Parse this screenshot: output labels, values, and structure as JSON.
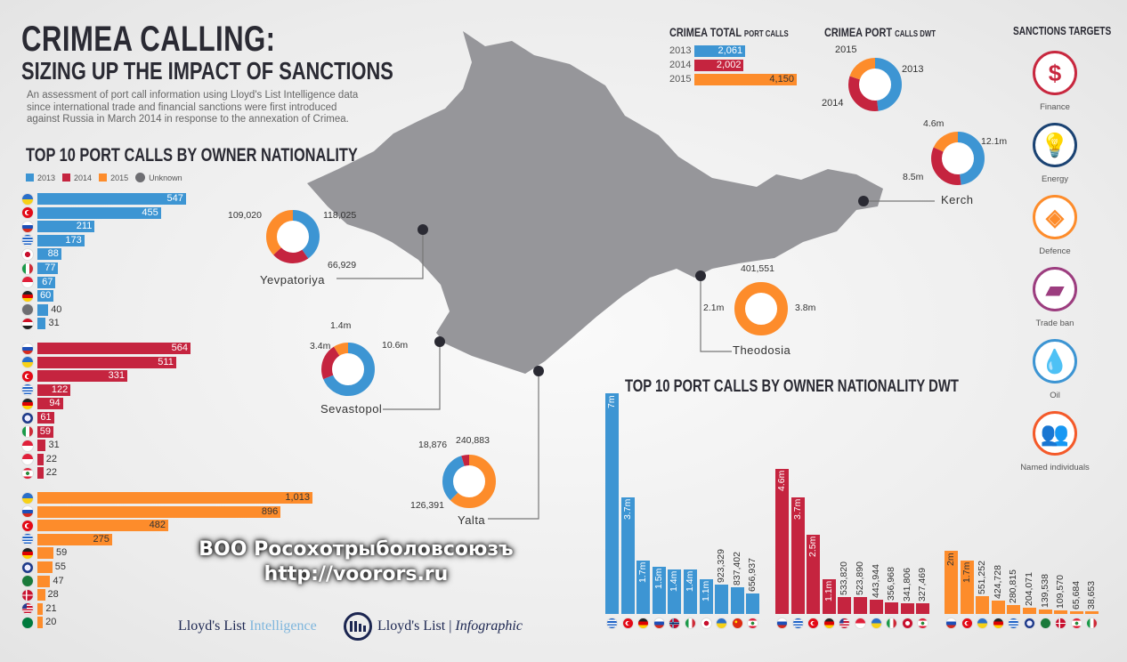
{
  "header": {
    "title": "CRIMEA CALLING:",
    "subtitle": "SIZING UP THE IMPACT OF SANCTIONS",
    "intro": [
      "An assessment of port call information using Lloyd's List Intelligence data",
      "since international trade and financial sanctions were first introduced",
      "against Russia in March 2014 in response to the annexation of Crimea."
    ]
  },
  "colors": {
    "2013": "#3d95d3",
    "2014": "#c5243f",
    "2015": "#fd8c2b",
    "unknown": "#6e6e72"
  },
  "chart_data": [
    {
      "type": "bar",
      "title": "TOP 10 PORT CALLS BY OWNER NATIONALITY",
      "legend": [
        {
          "label": "2013",
          "key": "2013"
        },
        {
          "label": "2014",
          "key": "2014"
        },
        {
          "label": "2015",
          "key": "2015"
        },
        {
          "label": "Unknown",
          "key": "unknown"
        }
      ],
      "groups": [
        {
          "year": "2013",
          "rows": [
            {
              "flag": "ua",
              "value": 547,
              "label": "547"
            },
            {
              "flag": "tr",
              "value": 455,
              "label": "455"
            },
            {
              "flag": "ru",
              "value": 211,
              "label": "211"
            },
            {
              "flag": "gr",
              "value": 173,
              "label": "173"
            },
            {
              "flag": "jp",
              "value": 88,
              "label": "88"
            },
            {
              "flag": "it",
              "value": 77,
              "label": "77"
            },
            {
              "flag": "sg",
              "value": 67,
              "label": "67"
            },
            {
              "flag": "de",
              "value": 60,
              "label": "60"
            },
            {
              "flag": "unknown",
              "value": 40,
              "label": "40"
            },
            {
              "flag": "sy",
              "value": 31,
              "label": "31"
            }
          ]
        },
        {
          "year": "2014",
          "rows": [
            {
              "flag": "ru",
              "value": 564,
              "label": "564"
            },
            {
              "flag": "ua",
              "value": 511,
              "label": "511"
            },
            {
              "flag": "tr",
              "value": 331,
              "label": "331"
            },
            {
              "flag": "gr",
              "value": 122,
              "label": "122"
            },
            {
              "flag": "de",
              "value": 94,
              "label": "94"
            },
            {
              "flag": "bz",
              "value": 61,
              "label": "61"
            },
            {
              "flag": "it",
              "value": 59,
              "label": "59"
            },
            {
              "flag": "id",
              "value": 31,
              "label": "31"
            },
            {
              "flag": "sg",
              "value": 22,
              "label": "22"
            },
            {
              "flag": "lb",
              "value": 22,
              "label": "22"
            }
          ]
        },
        {
          "year": "2015",
          "rows": [
            {
              "flag": "ua",
              "value": 1013,
              "label": "1,013"
            },
            {
              "flag": "ru",
              "value": 896,
              "label": "896"
            },
            {
              "flag": "tr",
              "value": 482,
              "label": "482"
            },
            {
              "flag": "gr",
              "value": 275,
              "label": "275"
            },
            {
              "flag": "de",
              "value": 59,
              "label": "59"
            },
            {
              "flag": "bz",
              "value": 55,
              "label": "55"
            },
            {
              "flag": "sa",
              "value": 47,
              "label": "47"
            },
            {
              "flag": "dk",
              "value": 28,
              "label": "28"
            },
            {
              "flag": "us",
              "value": 21,
              "label": "21"
            },
            {
              "flag": "sc",
              "value": 20,
              "label": "20"
            }
          ]
        }
      ]
    },
    {
      "type": "bar",
      "title_main": "CRIMEA TOTAL",
      "title_sub": "PORT CALLS",
      "rows": [
        {
          "year": "2013",
          "value": 2061,
          "label": "2,061"
        },
        {
          "year": "2014",
          "value": 2002,
          "label": "2,002"
        },
        {
          "year": "2015",
          "value": 4150,
          "label": "4,150"
        }
      ]
    },
    {
      "type": "pie",
      "title_main": "CRIMEA PORT",
      "title_sub": "CALLS DWT",
      "segments": [
        {
          "year": "2013",
          "label": "2013",
          "share": 0.48
        },
        {
          "year": "2014",
          "label": "2014",
          "share": 0.32
        },
        {
          "year": "2015",
          "label": "2015",
          "share": 0.2
        }
      ]
    },
    {
      "type": "pie",
      "ports": [
        {
          "name": "Kerch",
          "segments": [
            {
              "year": "2013",
              "value": 12.1,
              "label": "12.1m"
            },
            {
              "year": "2014",
              "value": 8.5,
              "label": "8.5m"
            },
            {
              "year": "2015",
              "value": 4.6,
              "label": "4.6m"
            }
          ]
        },
        {
          "name": "Yevpatoriya",
          "segments": [
            {
              "year": "2013",
              "value": 118025,
              "label": "118,025"
            },
            {
              "year": "2014",
              "value": 66929,
              "label": "66,929"
            },
            {
              "year": "2015",
              "value": 109020,
              "label": "109,020"
            }
          ]
        },
        {
          "name": "Sevastopol",
          "segments": [
            {
              "year": "2013",
              "value": 10.6,
              "label": "10.6m"
            },
            {
              "year": "2014",
              "value": 3.4,
              "label": "3.4m"
            },
            {
              "year": "2015",
              "value": 1.4,
              "label": "1.4m"
            }
          ]
        },
        {
          "name": "Theodosia",
          "segments": [
            {
              "year": "2013",
              "value": 3.8,
              "label": "3.8m"
            },
            {
              "year": "2014",
              "value": 2.1,
              "label": "2.1m"
            },
            {
              "year": "2015",
              "value": 401551,
              "label": "401,551"
            }
          ]
        },
        {
          "name": "Yalta",
          "segments": [
            {
              "year": "2015",
              "value": 240883,
              "label": "240,883"
            },
            {
              "year": "2013",
              "value": 126391,
              "label": "126,391"
            },
            {
              "year": "2014",
              "value": 18876,
              "label": "18,876"
            }
          ]
        }
      ]
    },
    {
      "type": "bar",
      "title": "TOP 10 PORT CALLS BY OWNER NATIONALITY DWT",
      "unit": "million DWT",
      "groups": [
        {
          "year": "2013",
          "bars": [
            {
              "flag": "gr",
              "value": 7,
              "label": "7m"
            },
            {
              "flag": "tr",
              "value": 3.7,
              "label": "3.7m"
            },
            {
              "flag": "de",
              "value": 1.7,
              "label": "1.7m"
            },
            {
              "flag": "ru",
              "value": 1.5,
              "label": "1.5m"
            },
            {
              "flag": "no",
              "value": 1.4,
              "label": "1.4m"
            },
            {
              "flag": "it",
              "value": 1.4,
              "label": "1.4m"
            },
            {
              "flag": "jp",
              "value": 1.1,
              "label": "1.1m"
            },
            {
              "flag": "ua",
              "value": 0.923329,
              "label": "923,329"
            },
            {
              "flag": "cn",
              "value": 0.837402,
              "label": "837,402"
            },
            {
              "flag": "lb",
              "value": 0.656937,
              "label": "656,937"
            }
          ]
        },
        {
          "year": "2014",
          "bars": [
            {
              "flag": "ru",
              "value": 4.6,
              "label": "4.6m"
            },
            {
              "flag": "gr",
              "value": 3.7,
              "label": "3.7m"
            },
            {
              "flag": "tr",
              "value": 2.5,
              "label": "2.5m"
            },
            {
              "flag": "de",
              "value": 1.1,
              "label": "1.1m"
            },
            {
              "flag": "us",
              "value": 0.53382,
              "label": "533,820"
            },
            {
              "flag": "id",
              "value": 0.52389,
              "label": "523,890"
            },
            {
              "flag": "ua",
              "value": 0.443944,
              "label": "443,944"
            },
            {
              "flag": "it",
              "value": 0.356968,
              "label": "356,968"
            },
            {
              "flag": "bm",
              "value": 0.341806,
              "label": "341,806"
            },
            {
              "flag": "lb",
              "value": 0.327469,
              "label": "327,469"
            }
          ]
        },
        {
          "year": "2015",
          "bars": [
            {
              "flag": "ru",
              "value": 2,
              "label": "2m"
            },
            {
              "flag": "tr",
              "value": 1.7,
              "label": "1.7m"
            },
            {
              "flag": "ua",
              "value": 0.551252,
              "label": "551,252"
            },
            {
              "flag": "de",
              "value": 0.424728,
              "label": "424,728"
            },
            {
              "flag": "gr",
              "value": 0.280815,
              "label": "280,815"
            },
            {
              "flag": "bz",
              "value": 0.204071,
              "label": "204,071"
            },
            {
              "flag": "sa",
              "value": 0.139538,
              "label": "139,538"
            },
            {
              "flag": "dk",
              "value": 0.10957,
              "label": "109,570"
            },
            {
              "flag": "lb",
              "value": 0.065684,
              "label": "65,684"
            },
            {
              "flag": "it",
              "value": 0.038653,
              "label": "38,653"
            }
          ]
        }
      ]
    }
  ],
  "sanctions": {
    "title": "SANCTIONS TARGETS",
    "items": [
      {
        "label": "Finance",
        "icon": "dollar-icon",
        "color": "#c8283f"
      },
      {
        "label": "Energy",
        "icon": "lightbulb-icon",
        "color": "#1b4373"
      },
      {
        "label": "Defence",
        "icon": "shield-icon",
        "color": "#fd8c2b"
      },
      {
        "label": "Trade ban",
        "icon": "crimea-map-icon",
        "color": "#9c3d7f"
      },
      {
        "label": "Oil",
        "icon": "oil-drop-icon",
        "color": "#3d95d3"
      },
      {
        "label": "Named individuals",
        "icon": "people-icon",
        "color": "#f45a2a"
      }
    ]
  },
  "footer": {
    "brand1": "Lloyd's List",
    "brand1_suffix": "Intelligence",
    "brand2": "Lloyd's List",
    "brand2_suffix": "Infographic"
  },
  "watermark": {
    "line1": "ВОО Росохотрыболовсоюзъ",
    "line2": "http://voorors.ru"
  }
}
